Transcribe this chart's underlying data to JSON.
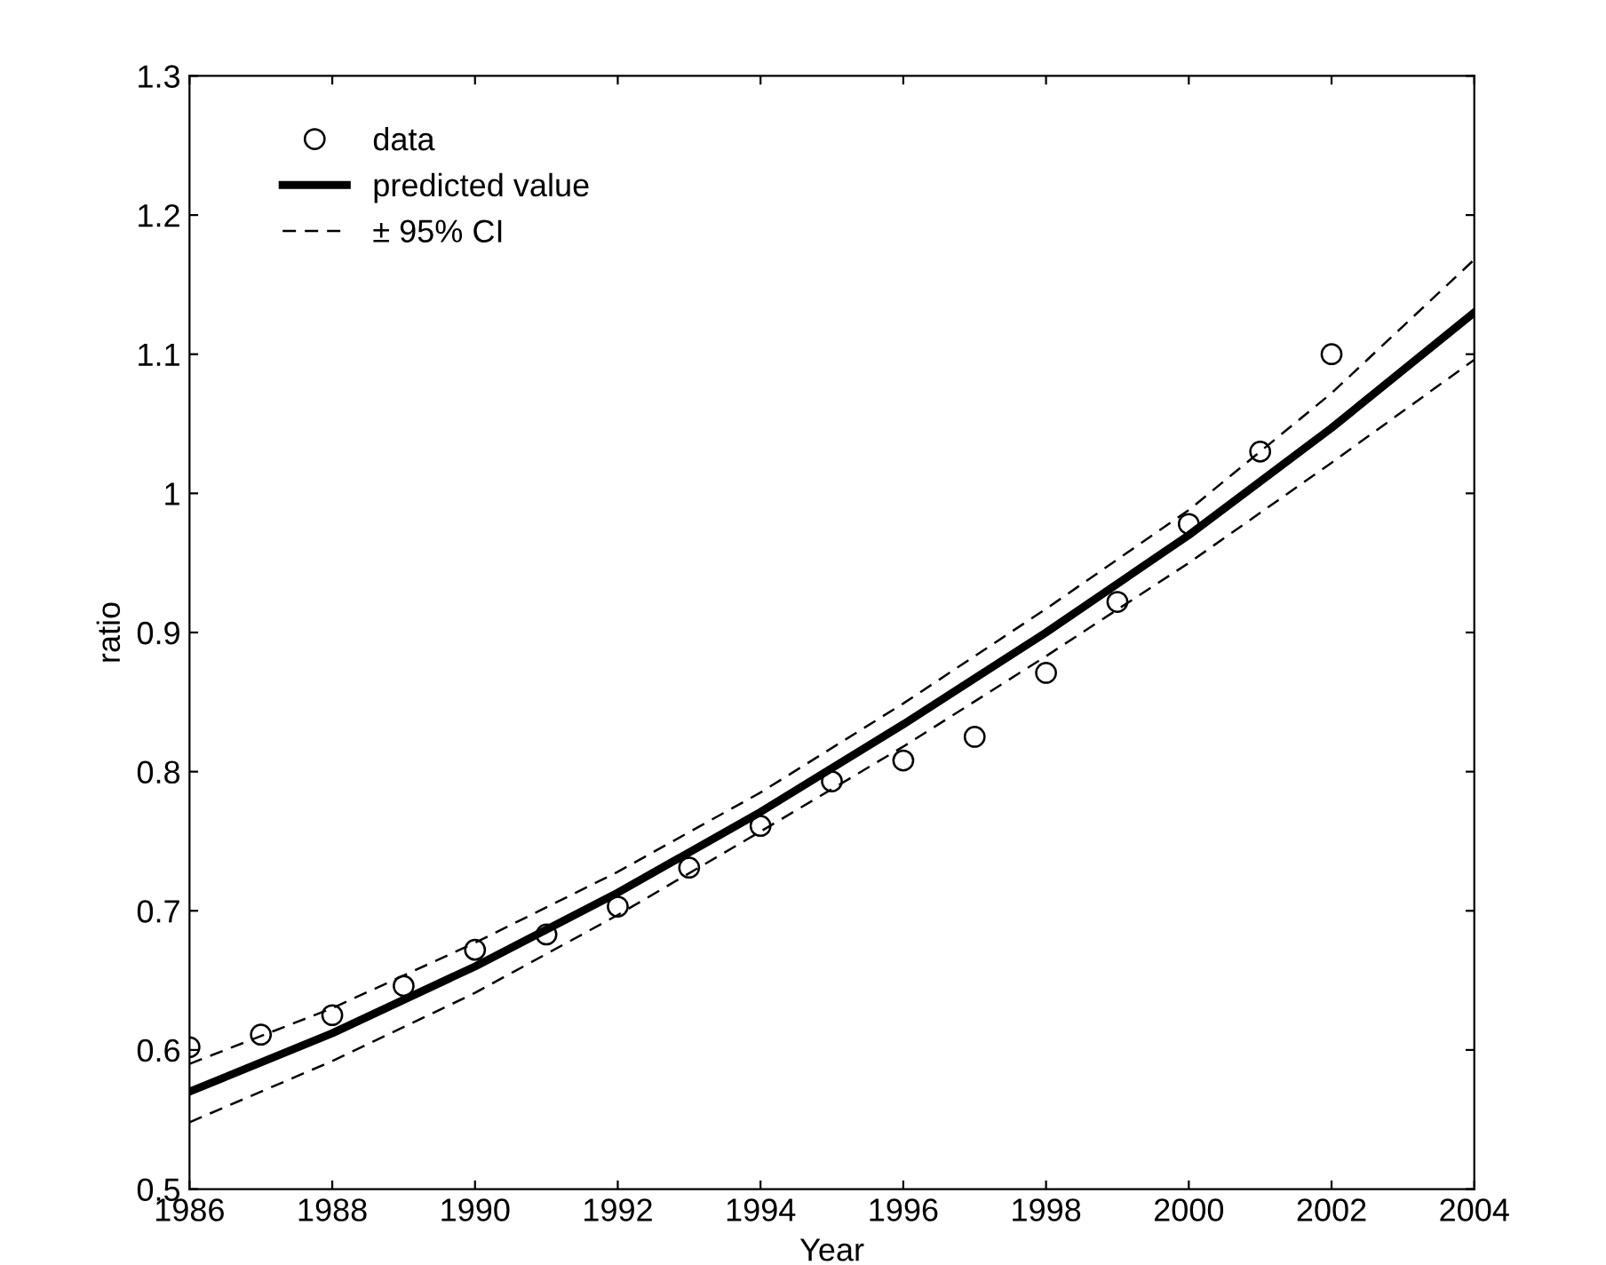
{
  "chart_data": {
    "type": "line",
    "xlabel": "Year",
    "ylabel": "ratio",
    "xlim": [
      1986,
      2004
    ],
    "xticks": [
      1986,
      1988,
      1990,
      1992,
      1994,
      1996,
      1998,
      2000,
      2002,
      2004
    ],
    "ylim": [
      0.5,
      1.3
    ],
    "yticks": [
      0.5,
      0.6,
      0.7,
      0.8,
      0.9,
      1,
      1.1,
      1.2,
      1.3
    ],
    "grid": false,
    "legend": "top left",
    "series": [
      {
        "name": "data",
        "type": "scatter",
        "marker": "circle",
        "color": "#000000",
        "x": [
          1986,
          1987,
          1988,
          1989,
          1990,
          1991,
          1992,
          1993,
          1994,
          1995,
          1996,
          1997,
          1998,
          1999,
          2000,
          2001,
          2002
        ],
        "values": [
          0.602,
          0.611,
          0.625,
          0.646,
          0.672,
          0.683,
          0.703,
          0.731,
          0.761,
          0.793,
          0.808,
          0.825,
          0.871,
          0.922,
          0.978,
          1.03,
          1.1
        ]
      },
      {
        "name": "predicted value",
        "line_style": "solid",
        "color": "#000000",
        "x": [
          1986,
          1988,
          1990,
          1992,
          1994,
          1996,
          1998,
          2000,
          2002,
          2004
        ],
        "values": [
          0.57,
          0.612,
          0.66,
          0.713,
          0.771,
          0.834,
          0.9,
          0.97,
          1.047,
          1.13
        ]
      },
      {
        "name": "± 95% CI",
        "line_style": "dashed",
        "color": "#000000",
        "x": [
          1986,
          1988,
          1990,
          1992,
          1994,
          1996,
          1998,
          2000,
          2002,
          2004
        ],
        "values": [
          0.59,
          0.63,
          0.677,
          0.728,
          0.785,
          0.849,
          0.917,
          0.988,
          1.072,
          1.168
        ]
      },
      {
        "line_style": "dashed",
        "color": "#000000",
        "x": [
          1986,
          1988,
          1990,
          1992,
          1994,
          1996,
          1998,
          2000,
          2002,
          2004
        ],
        "values": [
          0.548,
          0.592,
          0.641,
          0.697,
          0.757,
          0.818,
          0.883,
          0.95,
          1.022,
          1.096
        ]
      }
    ]
  }
}
